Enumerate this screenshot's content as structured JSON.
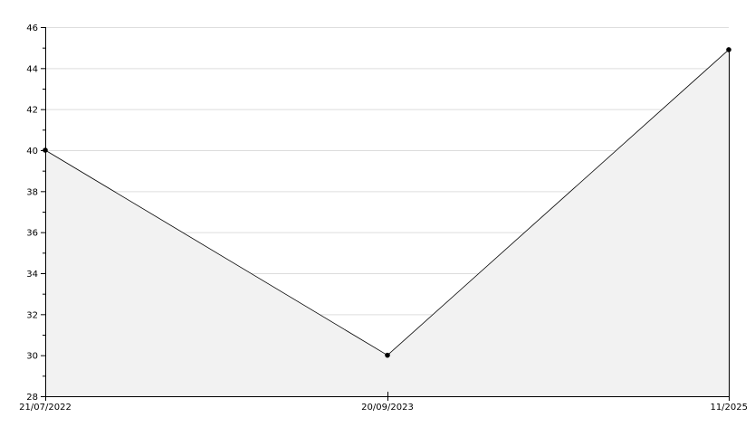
{
  "chart_data": {
    "type": "area",
    "title": "",
    "xlabel": "",
    "ylabel": "",
    "x_tick_labels": [
      "21/07/2022",
      "20/09/2023",
      "11/2025"
    ],
    "y_ticks": [
      28,
      30,
      32,
      34,
      36,
      38,
      40,
      42,
      44,
      46
    ],
    "ylim": [
      28,
      46
    ],
    "grid": true,
    "series": [
      {
        "x": [
          "21/07/2022",
          "20/09/2023",
          "11/2025"
        ],
        "values": [
          40,
          30,
          44.9
        ]
      }
    ],
    "colors": {
      "fill": "#f2f2f2",
      "line": "#000000",
      "grid": "#dddddd"
    }
  }
}
